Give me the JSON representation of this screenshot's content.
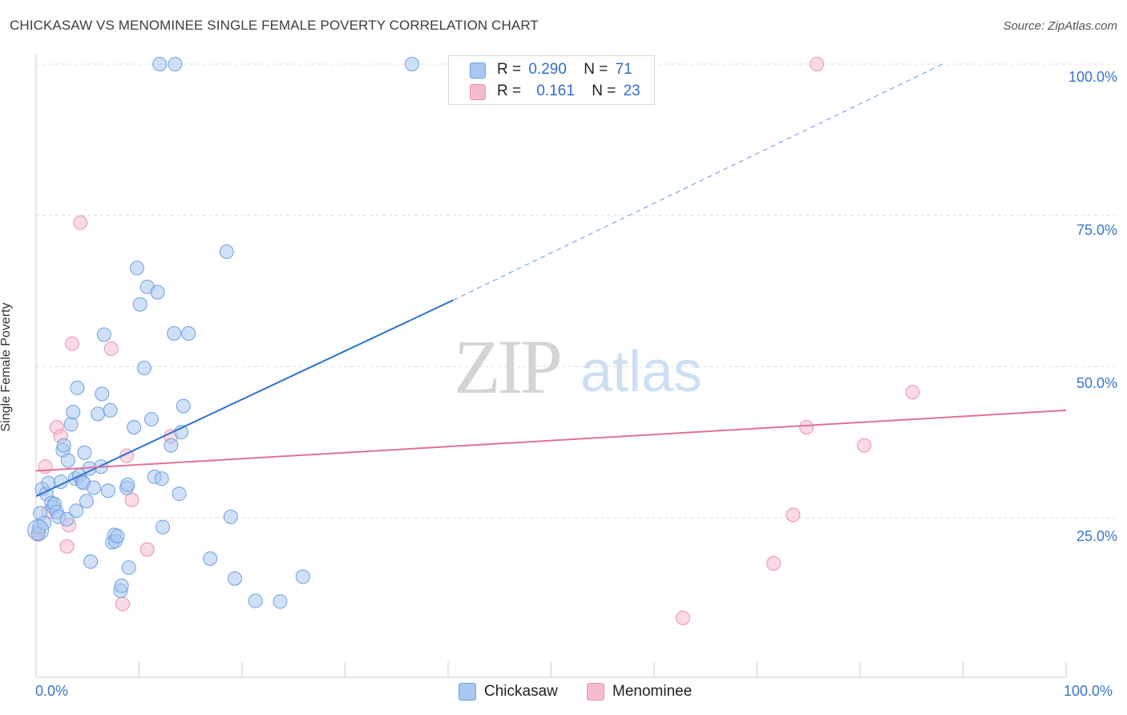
{
  "title": "CHICKASAW VS MENOMINEE SINGLE FEMALE POVERTY CORRELATION CHART",
  "source": "Source: ZipAtlas.com",
  "watermark": {
    "zip": "ZIP",
    "atlas": "atlas"
  },
  "colors": {
    "blue_fill": "#a9c8f0",
    "blue_stroke": "#6f9fe0",
    "blue_line": "#2f72d0",
    "pink_fill": "#f5bccd",
    "pink_stroke": "#ea93ad",
    "pink_line": "#e2709a",
    "grid": "#dddddd",
    "tick_text": "#3a74c9"
  },
  "legend": {
    "rows": [
      {
        "r_label": "R =",
        "r_value": "0.290",
        "n_label": "N =",
        "n_value": "71"
      },
      {
        "r_label": "R =",
        "r_value": "0.161",
        "n_label": "N =",
        "n_value": "23"
      }
    ]
  },
  "bottom_legend": [
    "Chickasaw",
    "Menominee"
  ],
  "chart_data": {
    "type": "scatter",
    "title": "CHICKASAW VS MENOMINEE SINGLE FEMALE POVERTY CORRELATION CHART",
    "xlabel": "",
    "ylabel": "Single Female Poverty",
    "xlim": [
      0,
      100
    ],
    "ylim": [
      0,
      100
    ],
    "x_tick_labels": [
      "0.0%",
      "100.0%"
    ],
    "y_tick_labels": [
      "100.0%",
      "75.0%",
      "50.0%",
      "25.0%"
    ],
    "y_ticks": [
      100,
      75,
      50,
      25
    ],
    "series": [
      {
        "name": "Chickasaw",
        "r": 0.29,
        "n": 71,
        "trend": {
          "x0": 0,
          "y0": 28.6,
          "x1": 40.5,
          "y1": 61.0,
          "dashed_to_x": 88.0,
          "dashed_to_y": 100
        },
        "points": [
          [
            0.2,
            22.5
          ],
          [
            0.3,
            23.5
          ],
          [
            0.4,
            25.8
          ],
          [
            0.6,
            29.8
          ],
          [
            0.8,
            24.2
          ],
          [
            1.0,
            29.0
          ],
          [
            1.2,
            30.8
          ],
          [
            1.5,
            27.5
          ],
          [
            1.7,
            26.8
          ],
          [
            1.8,
            27.3
          ],
          [
            2.0,
            26.0
          ],
          [
            2.2,
            25.2
          ],
          [
            2.4,
            31.0
          ],
          [
            2.6,
            36.2
          ],
          [
            2.7,
            37.0
          ],
          [
            3.0,
            24.8
          ],
          [
            3.1,
            34.5
          ],
          [
            3.4,
            40.5
          ],
          [
            3.6,
            42.5
          ],
          [
            3.8,
            31.5
          ],
          [
            3.9,
            26.2
          ],
          [
            4.0,
            46.5
          ],
          [
            4.2,
            32.0
          ],
          [
            4.5,
            31.0
          ],
          [
            4.6,
            30.8
          ],
          [
            4.7,
            35.8
          ],
          [
            4.9,
            27.8
          ],
          [
            5.2,
            33.2
          ],
          [
            5.3,
            17.8
          ],
          [
            5.6,
            30.0
          ],
          [
            6.0,
            42.2
          ],
          [
            6.3,
            33.5
          ],
          [
            6.4,
            45.5
          ],
          [
            6.6,
            55.3
          ],
          [
            7.0,
            29.5
          ],
          [
            7.2,
            42.8
          ],
          [
            7.4,
            21.0
          ],
          [
            7.6,
            22.2
          ],
          [
            7.7,
            21.2
          ],
          [
            7.9,
            22.0
          ],
          [
            8.2,
            13.0
          ],
          [
            8.3,
            13.8
          ],
          [
            8.8,
            30.0
          ],
          [
            8.9,
            30.5
          ],
          [
            9.0,
            16.8
          ],
          [
            9.5,
            40.0
          ],
          [
            9.8,
            66.3
          ],
          [
            10.1,
            60.3
          ],
          [
            10.5,
            49.8
          ],
          [
            10.8,
            63.2
          ],
          [
            11.2,
            41.3
          ],
          [
            11.5,
            31.8
          ],
          [
            11.8,
            62.3
          ],
          [
            12.2,
            31.5
          ],
          [
            12.3,
            23.5
          ],
          [
            13.1,
            37.0
          ],
          [
            13.4,
            55.5
          ],
          [
            13.9,
            29.0
          ],
          [
            14.1,
            39.2
          ],
          [
            14.3,
            43.5
          ],
          [
            14.8,
            55.5
          ],
          [
            16.9,
            18.3
          ],
          [
            18.5,
            69.0
          ],
          [
            18.9,
            25.2
          ],
          [
            19.3,
            15.0
          ],
          [
            21.3,
            11.3
          ],
          [
            23.7,
            11.2
          ],
          [
            25.9,
            15.3
          ],
          [
            12.0,
            100
          ],
          [
            13.5,
            100
          ],
          [
            36.5,
            100
          ]
        ]
      },
      {
        "name": "Menominee",
        "r": 0.161,
        "n": 23,
        "trend": {
          "x0": 0,
          "y0": 32.8,
          "x1": 100,
          "y1": 42.8
        },
        "points": [
          [
            0.2,
            22.3
          ],
          [
            0.9,
            33.5
          ],
          [
            1.2,
            26.0
          ],
          [
            2.0,
            40.0
          ],
          [
            2.4,
            38.5
          ],
          [
            3.0,
            20.3
          ],
          [
            3.2,
            23.8
          ],
          [
            3.5,
            53.8
          ],
          [
            4.3,
            73.8
          ],
          [
            7.3,
            53.0
          ],
          [
            8.4,
            10.8
          ],
          [
            8.8,
            35.3
          ],
          [
            9.3,
            28.0
          ],
          [
            10.8,
            19.8
          ],
          [
            13.1,
            38.5
          ],
          [
            62.8,
            8.5
          ],
          [
            71.6,
            17.5
          ],
          [
            73.5,
            25.5
          ],
          [
            74.8,
            40.0
          ],
          [
            75.8,
            100
          ],
          [
            80.4,
            37.0
          ],
          [
            85.1,
            45.8
          ],
          [
            0.3,
            23.0
          ]
        ]
      }
    ]
  }
}
